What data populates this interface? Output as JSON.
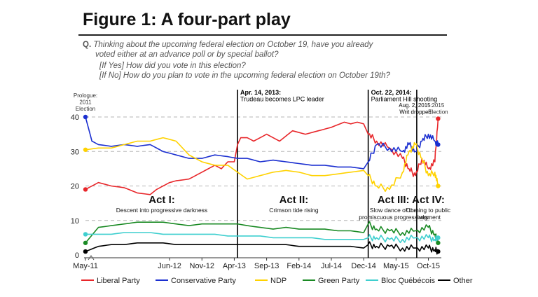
{
  "figure": {
    "title": "Figure 1: A four-part play",
    "question_label": "Q.",
    "question_lines": [
      "Thinking about the upcoming federal election on October 19, have you already",
      "voted either at an advance poll or by special ballot?",
      "[If Yes] How did you vote in this election?",
      "[If No] How do you plan to vote in the upcoming federal election on October 19th?"
    ]
  },
  "chart_data": {
    "type": "line",
    "ylim": [
      0,
      42
    ],
    "yticks": [
      0,
      10,
      20,
      30,
      40
    ],
    "x_tick_labels": [
      "May-11",
      "Jun-12",
      "Nov-12",
      "Apr-13",
      "Sep-13",
      "Feb-14",
      "Jul-14",
      "Dec-14",
      "May-15",
      "Oct-15"
    ],
    "x_tick_months": [
      0,
      13,
      18,
      23,
      28,
      33,
      38,
      43,
      48,
      53
    ],
    "xlim_months": [
      0,
      55
    ],
    "grid": "dashed horizontal at 10, 20, 30, 40",
    "legend": "bottom",
    "annotations": [
      {
        "month": 0,
        "lines": [
          "Prologue:",
          "2011",
          "Election"
        ],
        "color": "#333333"
      },
      {
        "month": 23.5,
        "lines": [
          "Apr. 14, 2013:",
          "Trudeau becomes LPC leader"
        ],
        "color": "#000000"
      },
      {
        "month": 43.7,
        "lines": [
          "Oct. 22, 2014:",
          "Parliament Hill shooting"
        ],
        "color": "#000000"
      },
      {
        "month": 51,
        "lines": [
          "Aug. 2, 2015:",
          "Writ dropped"
        ],
        "color": "#000000"
      },
      {
        "month": 54.5,
        "lines": [
          "2015",
          "Election"
        ],
        "color": "#333333"
      }
    ],
    "acts": [
      {
        "title": "Act I:",
        "subtitle": [
          "Descent into progressive darkness"
        ]
      },
      {
        "title": "Act II:",
        "subtitle": [
          "Crimson tide rising"
        ]
      },
      {
        "title": "Act III:",
        "subtitle": [
          "Slow dance of the",
          "promiscuous progressives"
        ]
      },
      {
        "title": "Act IV:",
        "subtitle": [
          "Coming to public",
          "judgment"
        ]
      }
    ],
    "act_label_months": [
      11.8,
      32.2,
      47.6,
      53.0
    ],
    "event_line_months": [
      23.5,
      43.7,
      51.2
    ],
    "series": [
      {
        "name": "Liberal Party",
        "color": "#e8262a",
        "start": 19,
        "end": 39.5,
        "x": [
          0,
          2,
          4,
          6,
          8,
          10,
          11,
          12,
          13,
          14,
          16,
          18,
          20,
          21,
          22,
          23,
          23.5,
          24,
          25,
          26,
          28,
          30,
          32,
          34,
          36,
          38,
          40,
          41,
          42,
          43,
          43.7,
          45,
          47,
          49,
          50,
          51,
          52,
          53,
          54,
          54.5
        ],
        "y": [
          19,
          21,
          20,
          19.5,
          18,
          17.5,
          19,
          20,
          21,
          21.5,
          22,
          24,
          26,
          25,
          27,
          27,
          32,
          34,
          34,
          33,
          35,
          33,
          36,
          35,
          36,
          37,
          38.5,
          38,
          38.5,
          38,
          35,
          33,
          31,
          28,
          25,
          23,
          28,
          25,
          27,
          39.5
        ]
      },
      {
        "name": "Conservative Party",
        "color": "#1b2fd0",
        "start": 40,
        "end": 32,
        "x": [
          0,
          1,
          2,
          4,
          6,
          8,
          10,
          12,
          14,
          16,
          18,
          20,
          22,
          23.5,
          25,
          27,
          29,
          31,
          33,
          35,
          37,
          39,
          41,
          43,
          43.7,
          45,
          47,
          49,
          50,
          51,
          52,
          53,
          54,
          54.5
        ],
        "y": [
          40,
          33,
          32,
          31.5,
          32,
          31.5,
          32,
          30,
          29,
          28,
          28,
          29,
          28.5,
          28,
          28,
          27,
          27.5,
          27,
          26.5,
          26,
          26,
          25.5,
          25.5,
          25,
          27,
          32,
          31,
          30,
          32,
          30,
          33,
          35,
          33,
          32
        ]
      },
      {
        "name": "NDP",
        "color": "#ffd200",
        "start": 30.5,
        "end": 20,
        "x": [
          0,
          2,
          4,
          6,
          8,
          10,
          12,
          14,
          16,
          18,
          20,
          22,
          23.5,
          25,
          27,
          29,
          31,
          33,
          35,
          37,
          39,
          41,
          43,
          43.7,
          45,
          47,
          49,
          50,
          51,
          52,
          53,
          54,
          54.5
        ],
        "y": [
          30.5,
          31,
          31,
          32,
          33,
          33,
          34,
          33,
          29,
          27,
          26,
          26,
          24,
          22,
          23,
          24,
          24.5,
          24,
          23,
          23,
          23.5,
          24,
          24.5,
          23,
          20,
          19,
          24,
          30,
          32,
          28,
          23,
          24,
          20
        ]
      },
      {
        "name": "Green Party",
        "color": "#1a8a24",
        "start": 3.5,
        "end": 3.5,
        "x": [
          0,
          2,
          4,
          6,
          8,
          10,
          12,
          14,
          16,
          18,
          20,
          22,
          23.5,
          25,
          27,
          29,
          31,
          33,
          35,
          37,
          39,
          41,
          43,
          43.7,
          45,
          47,
          49,
          51,
          53,
          54,
          54.5
        ],
        "y": [
          3.5,
          8,
          8.5,
          9,
          9.5,
          9.5,
          9.5,
          9,
          8.5,
          9,
          9,
          9,
          9,
          8.5,
          8,
          7.5,
          8,
          7.5,
          7.5,
          7.5,
          7,
          7,
          6.5,
          9,
          7.5,
          7,
          6.5,
          7,
          8,
          6,
          3.5
        ]
      },
      {
        "name": "Bloc Québécois",
        "color": "#3fcfcf",
        "start": 6,
        "end": 5,
        "x": [
          0,
          2,
          4,
          6,
          8,
          10,
          12,
          14,
          16,
          18,
          20,
          22,
          23.5,
          25,
          27,
          29,
          31,
          33,
          35,
          37,
          39,
          41,
          43,
          43.7,
          45,
          47,
          49,
          51,
          53,
          54,
          54.5
        ],
        "y": [
          6,
          6,
          6,
          6.5,
          6.5,
          6.5,
          6,
          6,
          6,
          6,
          6,
          5.5,
          5.5,
          5.5,
          5.5,
          5,
          5,
          5,
          5,
          4.5,
          4.5,
          4.5,
          4.5,
          5,
          5,
          4.5,
          4.5,
          5,
          5,
          4.5,
          5
        ]
      },
      {
        "name": "Other",
        "color": "#000000",
        "start": 1,
        "end": 1,
        "x": [
          0,
          2,
          4,
          6,
          8,
          10,
          12,
          14,
          16,
          18,
          20,
          22,
          23.5,
          25,
          27,
          29,
          31,
          33,
          35,
          37,
          39,
          41,
          43,
          43.7,
          45,
          47,
          49,
          51,
          53,
          54,
          54.5
        ],
        "y": [
          1,
          2.5,
          3,
          3,
          3.5,
          3.5,
          3.5,
          3,
          3,
          3,
          3,
          3,
          3,
          3,
          3,
          3,
          3,
          2.5,
          2.5,
          2.5,
          2.5,
          2.5,
          2,
          3,
          2.5,
          2.5,
          2,
          2,
          2,
          1.5,
          1
        ]
      }
    ]
  }
}
